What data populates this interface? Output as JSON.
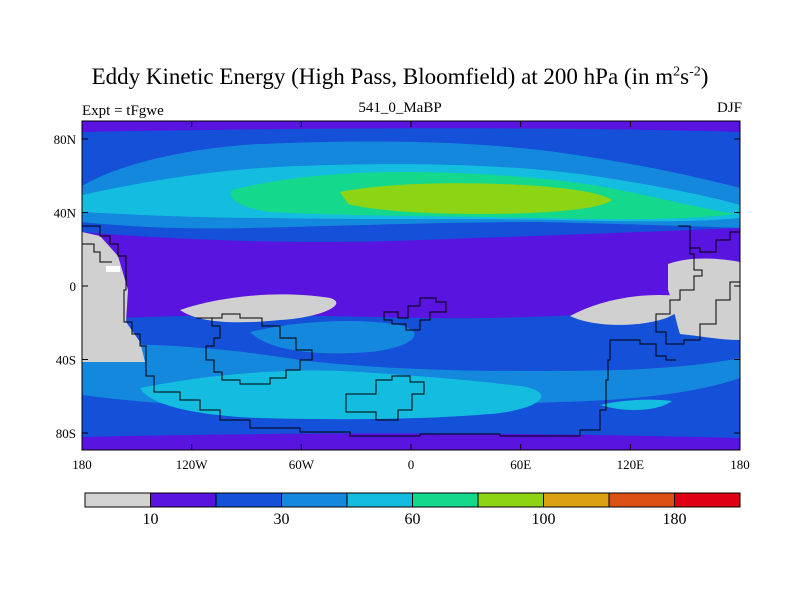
{
  "title": {
    "main": "Eddy Kinetic Energy (High Pass, Bloomfield) at 200 hPa (in m",
    "sup1": "2",
    "mid": "s",
    "sup2": "-2",
    "end": ")"
  },
  "subtitle": "541_0_MaBP",
  "left_label": "Expt = tFgwe",
  "right_label": "DJF",
  "map": {
    "lon_ticks": [
      "180",
      "120W",
      "60W",
      "0",
      "60E",
      "120E",
      "180"
    ],
    "lat_ticks": [
      "80N",
      "40N",
      "0",
      "40S",
      "80S"
    ],
    "land_color": "#d0d0d0"
  },
  "colorbar": {
    "colors": [
      "#d3d3d3",
      "#5a14e0",
      "#1450d8",
      "#1488dc",
      "#14bce0",
      "#14d88c",
      "#8cd414",
      "#dca014",
      "#dc5014",
      "#e00014"
    ],
    "labels": [
      {
        "text": "10",
        "index": 1
      },
      {
        "text": "30",
        "index": 3
      },
      {
        "text": "60",
        "index": 5
      },
      {
        "text": "100",
        "index": 7
      },
      {
        "text": "180",
        "index": 9
      }
    ]
  }
}
